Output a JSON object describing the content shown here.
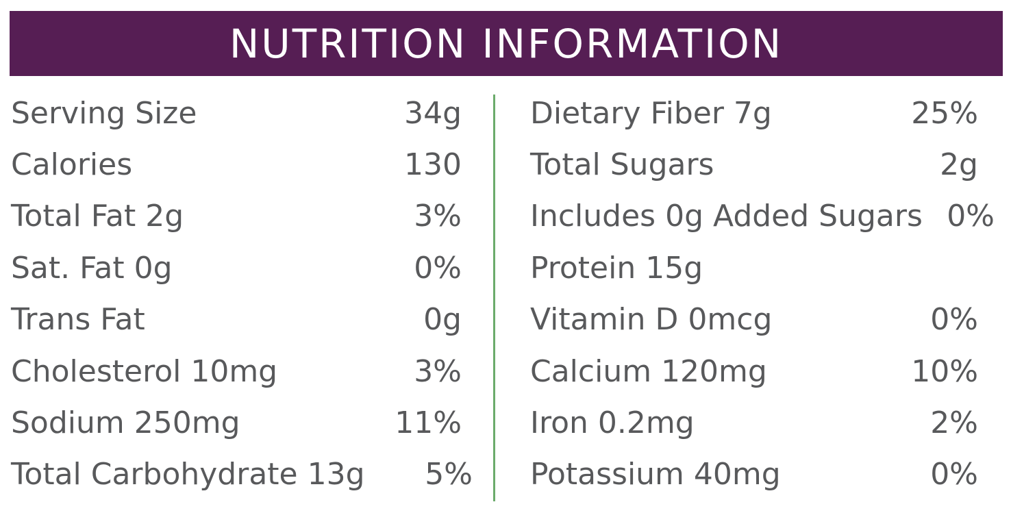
{
  "title": "NUTRITION INFORMATION",
  "colors": {
    "title_bar": "#561e54",
    "title_text": "#ffffff",
    "body_text": "#58595b",
    "divider": "#6bab6b"
  },
  "left_rows": [
    {
      "label": "Serving Size",
      "value": "34g"
    },
    {
      "label": "Calories",
      "value": "130"
    },
    {
      "label": "Total Fat 2g",
      "value": "3%"
    },
    {
      "label": "Sat. Fat 0g",
      "value": "0%"
    },
    {
      "label": "Trans Fat",
      "value": "0g"
    },
    {
      "label": "Cholesterol 10mg",
      "value": "3%"
    },
    {
      "label": "Sodium 250mg",
      "value": "11%"
    },
    {
      "label": "Total Carbohydrate 13g",
      "value": "5%"
    }
  ],
  "right_rows": [
    {
      "label": "Dietary Fiber 7g",
      "value": "25%"
    },
    {
      "label": "Total Sugars",
      "value": "2g"
    },
    {
      "label": "Includes 0g Added Sugars",
      "value": "0%"
    },
    {
      "label": "Protein 15g",
      "value": ""
    },
    {
      "label": "Vitamin D 0mcg",
      "value": "0%"
    },
    {
      "label": "Calcium 120mg",
      "value": "10%"
    },
    {
      "label": "Iron 0.2mg",
      "value": "2%"
    },
    {
      "label": "Potassium 40mg",
      "value": "0%"
    }
  ]
}
